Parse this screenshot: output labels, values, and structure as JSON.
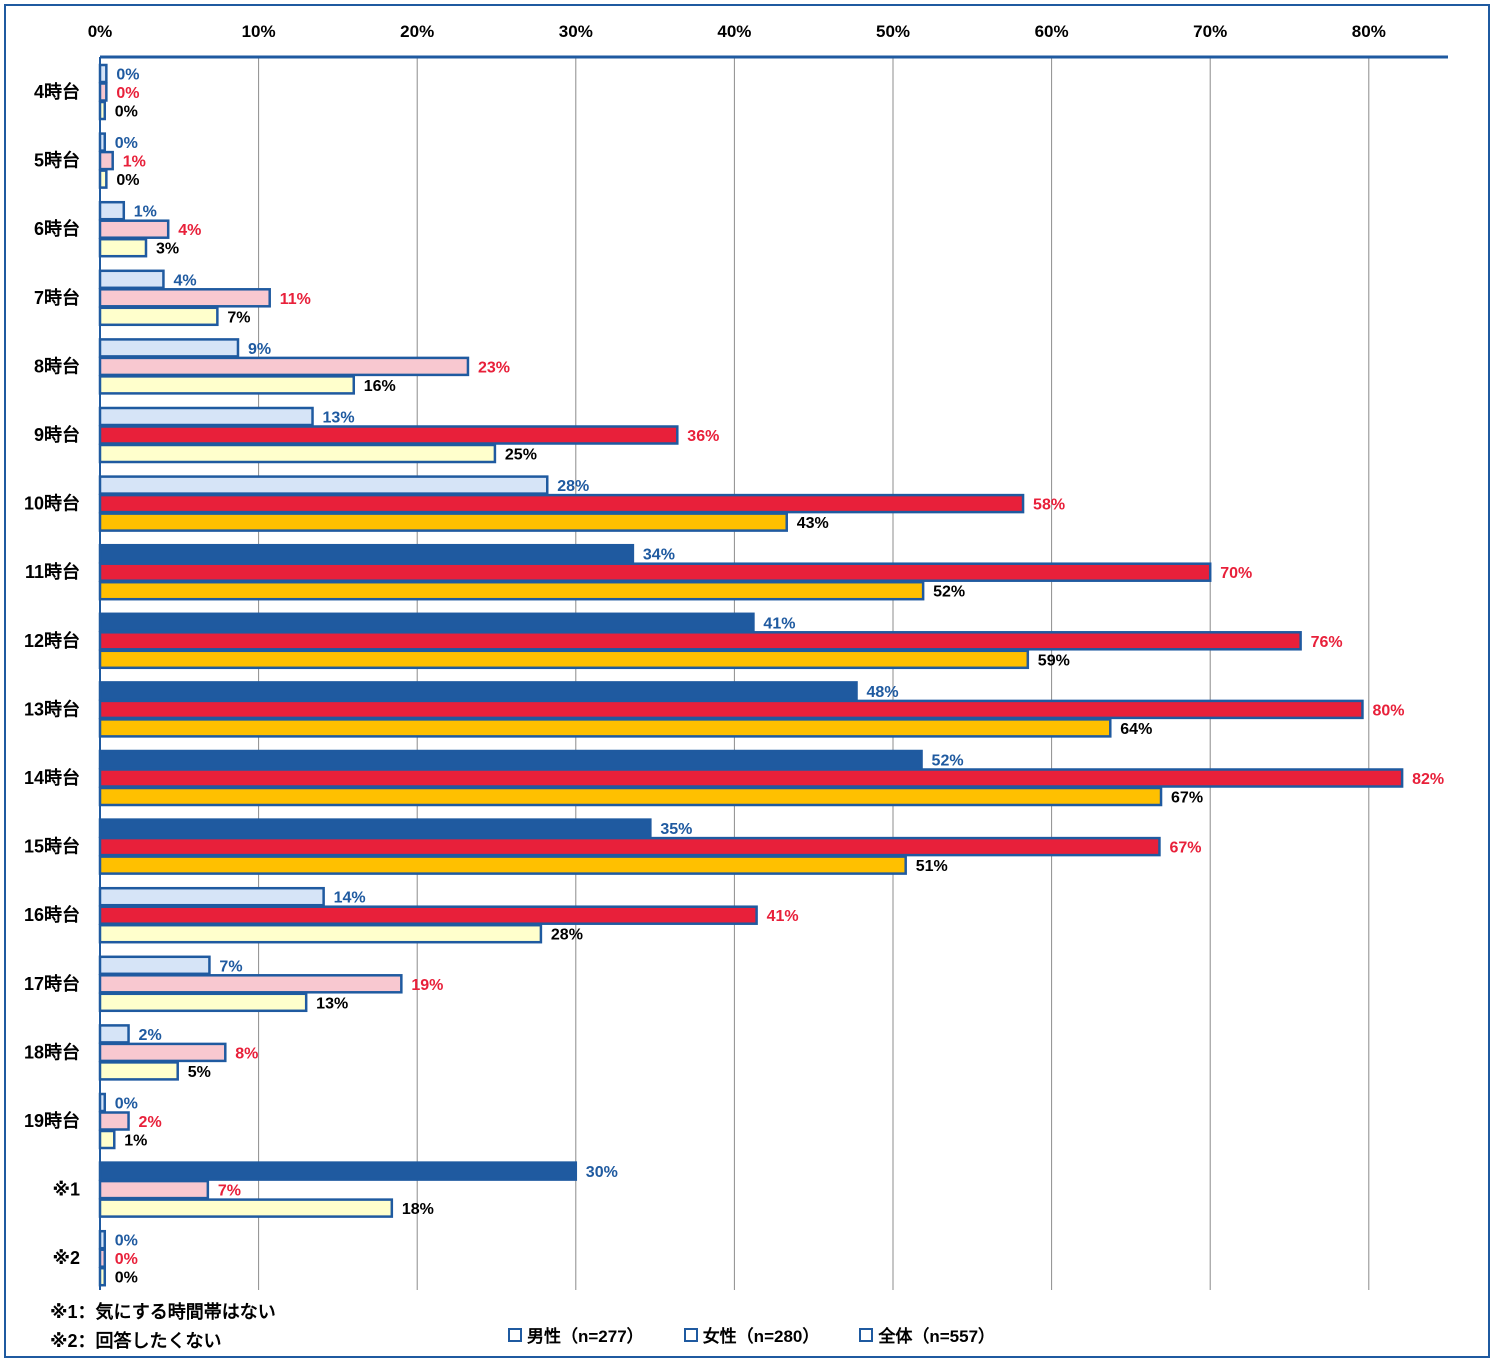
{
  "chart_data": {
    "type": "bar",
    "orientation": "horizontal",
    "categories": [
      "4時台",
      "5時台",
      "6時台",
      "7時台",
      "8時台",
      "9時台",
      "10時台",
      "11時台",
      "12時台",
      "13時台",
      "14時台",
      "15時台",
      "16時台",
      "17時台",
      "18時台",
      "19時台",
      "※1",
      "※2"
    ],
    "series": [
      {
        "name": "男性（n=277）",
        "values": [
          0,
          0,
          1,
          4,
          9,
          13,
          28,
          34,
          41,
          48,
          52,
          35,
          14,
          7,
          2,
          0,
          30,
          0
        ],
        "exact": [
          0.4,
          0.3,
          1.5,
          4,
          8.7,
          13.4,
          28.2,
          33.6,
          41.2,
          47.7,
          51.8,
          34.7,
          14.1,
          6.9,
          1.8,
          0.3,
          30,
          0.3
        ],
        "labels": [
          "0%",
          "0%",
          "1%",
          "4%",
          "9%",
          "13%",
          "28%",
          "34%",
          "41%",
          "48%",
          "52%",
          "35%",
          "14%",
          "7%",
          "2%",
          "0%",
          "30%",
          "0%"
        ],
        "label_color": "#1f5aa0"
      },
      {
        "name": "女性（n=280）",
        "values": [
          0,
          1,
          4,
          11,
          23,
          36,
          58,
          70,
          76,
          80,
          82,
          67,
          41,
          19,
          8,
          2,
          7,
          0
        ],
        "exact": [
          0.4,
          0.8,
          4.3,
          10.7,
          23.2,
          36.4,
          58.2,
          70,
          75.7,
          79.6,
          82.1,
          66.8,
          41.4,
          19,
          7.9,
          1.8,
          6.8,
          0.3
        ],
        "labels": [
          "0%",
          "1%",
          "4%",
          "11%",
          "23%",
          "36%",
          "58%",
          "70%",
          "76%",
          "80%",
          "82%",
          "67%",
          "41%",
          "19%",
          "8%",
          "2%",
          "7%",
          "0%"
        ],
        "label_color": "#e8203a"
      },
      {
        "name": "全体（n=557）",
        "values": [
          0,
          0,
          3,
          7,
          16,
          25,
          43,
          52,
          59,
          64,
          67,
          51,
          28,
          13,
          5,
          1,
          18,
          0
        ],
        "exact": [
          0.3,
          0.4,
          2.9,
          7.4,
          16,
          24.9,
          43.3,
          51.9,
          58.5,
          63.7,
          66.9,
          50.8,
          27.8,
          13,
          4.9,
          0.9,
          18.4,
          0.3
        ],
        "labels": [
          "0%",
          "0%",
          "3%",
          "7%",
          "16%",
          "25%",
          "43%",
          "52%",
          "59%",
          "64%",
          "67%",
          "51%",
          "28%",
          "13%",
          "5%",
          "1%",
          "18%",
          "0%"
        ],
        "label_color": "#000000"
      }
    ],
    "xlim": [
      0,
      85
    ],
    "xticks": [
      "0%",
      "10%",
      "20%",
      "30%",
      "40%",
      "50%",
      "60%",
      "70%",
      "80%"
    ],
    "xtick_values": [
      0,
      10,
      20,
      30,
      40,
      50,
      60,
      70,
      80
    ],
    "xaxis_position": "top",
    "grid": true,
    "colors": {
      "border": "#1f5aa0",
      "male_high": "#1f5aa0",
      "male_low": "#d6e4f7",
      "female_high": "#e8203a",
      "female_low": "#f8c8d0",
      "total_high": "#ffc000",
      "total_low": "#ffffcc",
      "gridline": "#8c8c8c"
    },
    "legend_position": "bottom-center"
  },
  "notes": [
    "※1：気にする時間帯はない",
    "※2：回答したくない"
  ],
  "legend": [
    {
      "label": "男性（n=277）",
      "icon": "square-outline-icon"
    },
    {
      "label": "女性（n=280）",
      "icon": "square-outline-icon"
    },
    {
      "label": "全体（n=557）",
      "icon": "square-outline-icon"
    }
  ]
}
